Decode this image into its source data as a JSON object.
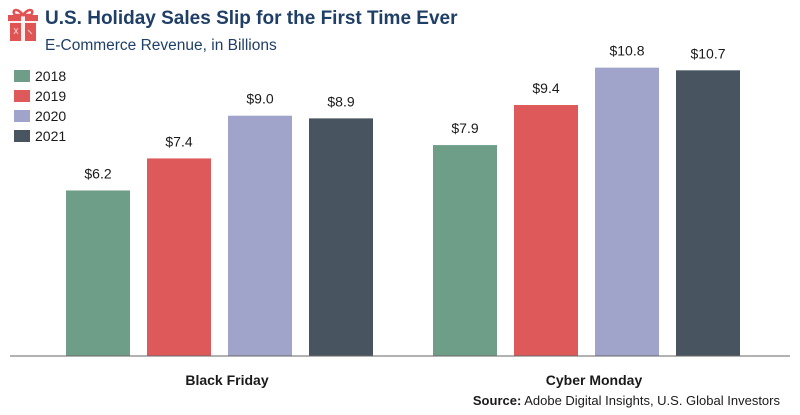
{
  "chart_data": {
    "type": "bar",
    "title": "U.S. Holiday Sales Slip for the First Time Ever",
    "subtitle": "E-Commerce Revenue, in Billions",
    "categories": [
      "Black Friday",
      "Cyber Monday"
    ],
    "series": [
      {
        "name": "2018",
        "values": [
          6.2,
          7.9
        ],
        "labels": [
          "$6.2",
          "$7.9"
        ]
      },
      {
        "name": "2019",
        "values": [
          7.4,
          9.4
        ],
        "labels": [
          "$7.4",
          "$9.4"
        ]
      },
      {
        "name": "2020",
        "values": [
          9.0,
          10.8
        ],
        "labels": [
          "$9.0",
          "$10.8"
        ]
      },
      {
        "name": "2021",
        "values": [
          8.9,
          10.7
        ],
        "labels": [
          "$8.9",
          "$10.7"
        ]
      }
    ],
    "ylim": [
      0,
      12
    ],
    "grid": false,
    "legend_position": "top-left",
    "colors": [
      "#6f9e88",
      "#de5a5a",
      "#a0a4cb",
      "#485560"
    ],
    "text_color": "#1f3f66",
    "source_label": "Source:",
    "source_text": "Adobe Digital Insights, U.S. Global Investors"
  },
  "icons": {
    "title_icon": "gift-icon",
    "icon_color": "#e05454"
  }
}
